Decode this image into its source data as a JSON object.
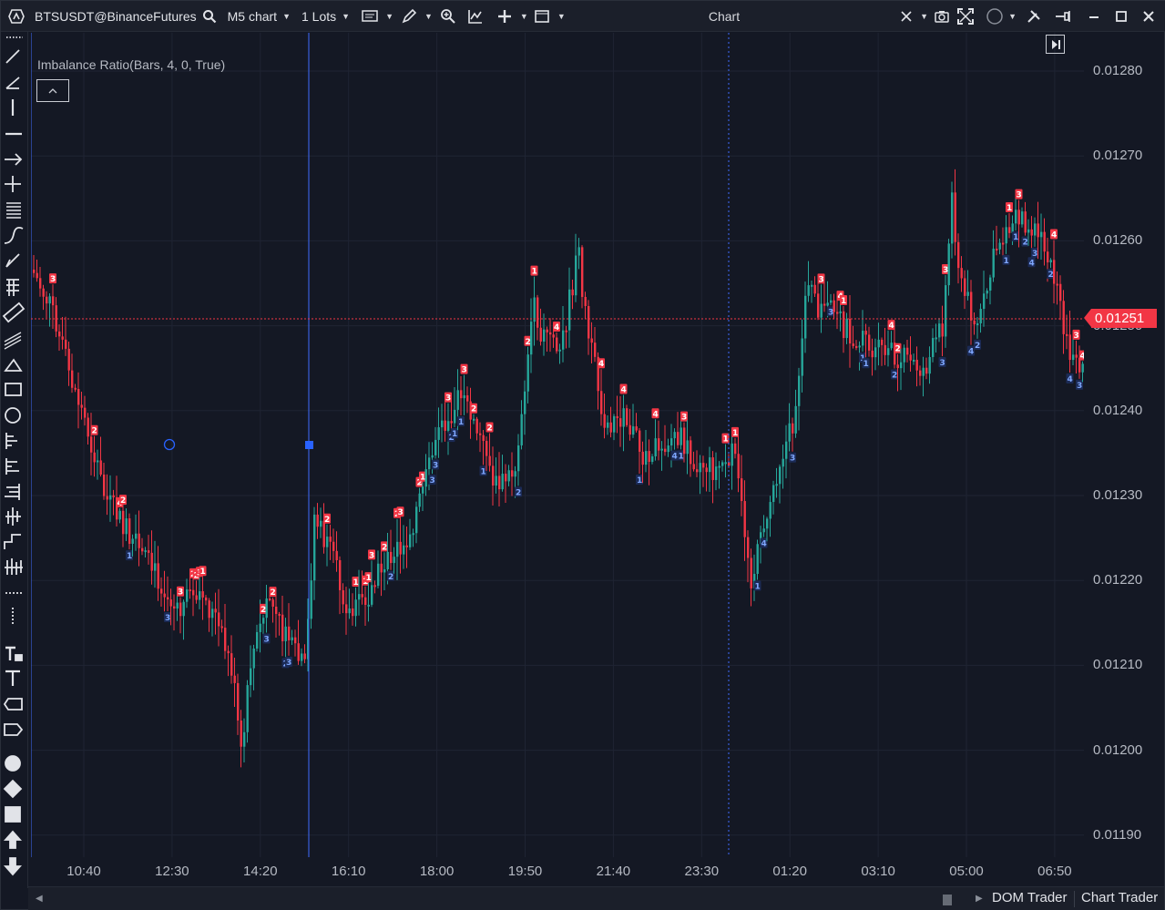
{
  "titlebar": {
    "symbol": "BTSUSDT@BinanceFutures",
    "timeframe": "M5 chart",
    "lots": "1 Lots",
    "window_title": "Chart"
  },
  "chart": {
    "indicator_label": "Imbalance Ratio(Bars, 4, 0, True)",
    "last_price": "0.01251",
    "colors": {
      "up": "#26a69a",
      "down": "#f23645",
      "marker_blue": "#3f78ff",
      "background": "#141824"
    }
  },
  "price_axis": {
    "ticks": [
      "0.01280",
      "0.01270",
      "0.01260",
      "0.01250",
      "0.01240",
      "0.01230",
      "0.01220",
      "0.01210",
      "0.01200",
      "0.01190"
    ]
  },
  "time_axis": {
    "ticks": [
      "10:40",
      "12:30",
      "14:20",
      "16:10",
      "18:00",
      "19:50",
      "21:40",
      "23:30",
      "01:20",
      "03:10",
      "05:00",
      "06:50"
    ]
  },
  "bottombar": {
    "dom_trader": "DOM Trader",
    "chart_trader": "Chart Trader"
  }
}
